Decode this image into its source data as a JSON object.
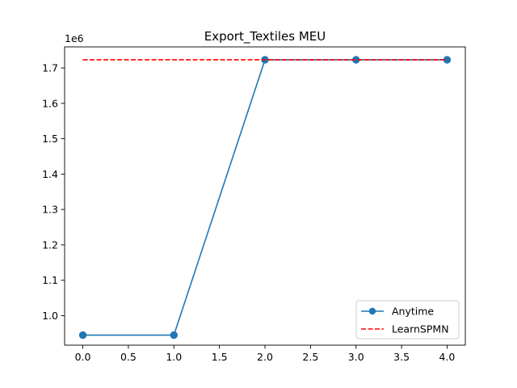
{
  "chart_data": {
    "type": "line",
    "title": "Export_Textiles MEU",
    "xlabel": "",
    "ylabel": "",
    "y_offset_label": "1e6",
    "xlim": [
      -0.2,
      4.2
    ],
    "ylim": [
      0.9165,
      1.7595
    ],
    "x_ticks": [
      0.0,
      0.5,
      1.0,
      1.5,
      2.0,
      2.5,
      3.0,
      3.5,
      4.0
    ],
    "x_tick_labels": [
      "0.0",
      "0.5",
      "1.0",
      "1.5",
      "2.0",
      "2.5",
      "3.0",
      "3.5",
      "4.0"
    ],
    "y_ticks": [
      1.0,
      1.1,
      1.2,
      1.3,
      1.4,
      1.5,
      1.6,
      1.7
    ],
    "y_tick_labels": [
      "1.0",
      "1.1",
      "1.2",
      "1.3",
      "1.4",
      "1.5",
      "1.6",
      "1.7"
    ],
    "grid": false,
    "legend_position": "lower-right",
    "series": [
      {
        "name": "Anytime",
        "style": "solid-with-circle-markers",
        "color": "#1f77b4",
        "x": [
          0,
          1,
          2,
          3,
          4
        ],
        "y": [
          0.945,
          0.945,
          1.723,
          1.723,
          1.723
        ]
      },
      {
        "name": "LearnSPMN",
        "style": "dashed",
        "color": "#ff0000",
        "x": [
          0,
          4
        ],
        "y": [
          1.723,
          1.723
        ]
      }
    ]
  }
}
